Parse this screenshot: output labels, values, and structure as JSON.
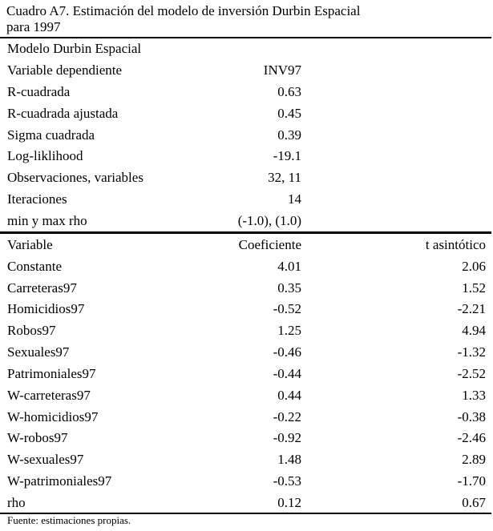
{
  "title": {
    "line1": "Cuadro A7. Estimación del modelo de inversión Durbin Espacial",
    "line2": "para 1997"
  },
  "model": {
    "header": "Modelo Durbin Espacial",
    "stats": [
      {
        "label": "Variable dependiente",
        "value": "INV97"
      },
      {
        "label": "R-cuadrada",
        "value": "0.63"
      },
      {
        "label": "R-cuadrada ajustada",
        "value": "0.45"
      },
      {
        "label": "Sigma cuadrada",
        "value": "0.39"
      },
      {
        "label": "Log-liklihood",
        "value": "-19.1"
      },
      {
        "label": "Observaciones, variables",
        "value": "32, 11"
      },
      {
        "label": "Iteraciones",
        "value": "14"
      },
      {
        "label": "min y max rho",
        "value": "(-1.0), (1.0)"
      }
    ]
  },
  "coefficients": {
    "headers": {
      "variable": "Variable",
      "coef": "Coeficiente",
      "t": "t asintótico"
    },
    "rows": [
      {
        "variable": "Constante",
        "coef": "4.01",
        "t": "2.06"
      },
      {
        "variable": "Carreteras97",
        "coef": "0.35",
        "t": "1.52"
      },
      {
        "variable": "Homicidios97",
        "coef": "-0.52",
        "t": "-2.21"
      },
      {
        "variable": "Robos97",
        "coef": "1.25",
        "t": "4.94"
      },
      {
        "variable": "Sexuales97",
        "coef": "-0.46",
        "t": "-1.32"
      },
      {
        "variable": "Patrimoniales97",
        "coef": "-0.44",
        "t": "-2.52"
      },
      {
        "variable": "W-carreteras97",
        "coef": "0.44",
        "t": "1.33"
      },
      {
        "variable": "W-homicidios97",
        "coef": "-0.22",
        "t": "-0.38"
      },
      {
        "variable": "W-robos97",
        "coef": "-0.92",
        "t": "-2.46"
      },
      {
        "variable": "W-sexuales97",
        "coef": "1.48",
        "t": "2.89"
      },
      {
        "variable": "W-patrimoniales97",
        "coef": "-0.53",
        "t": "-1.70"
      },
      {
        "variable": "rho",
        "coef": "0.12",
        "t": "0.67"
      }
    ]
  },
  "source": "Fuente: estimaciones propias."
}
